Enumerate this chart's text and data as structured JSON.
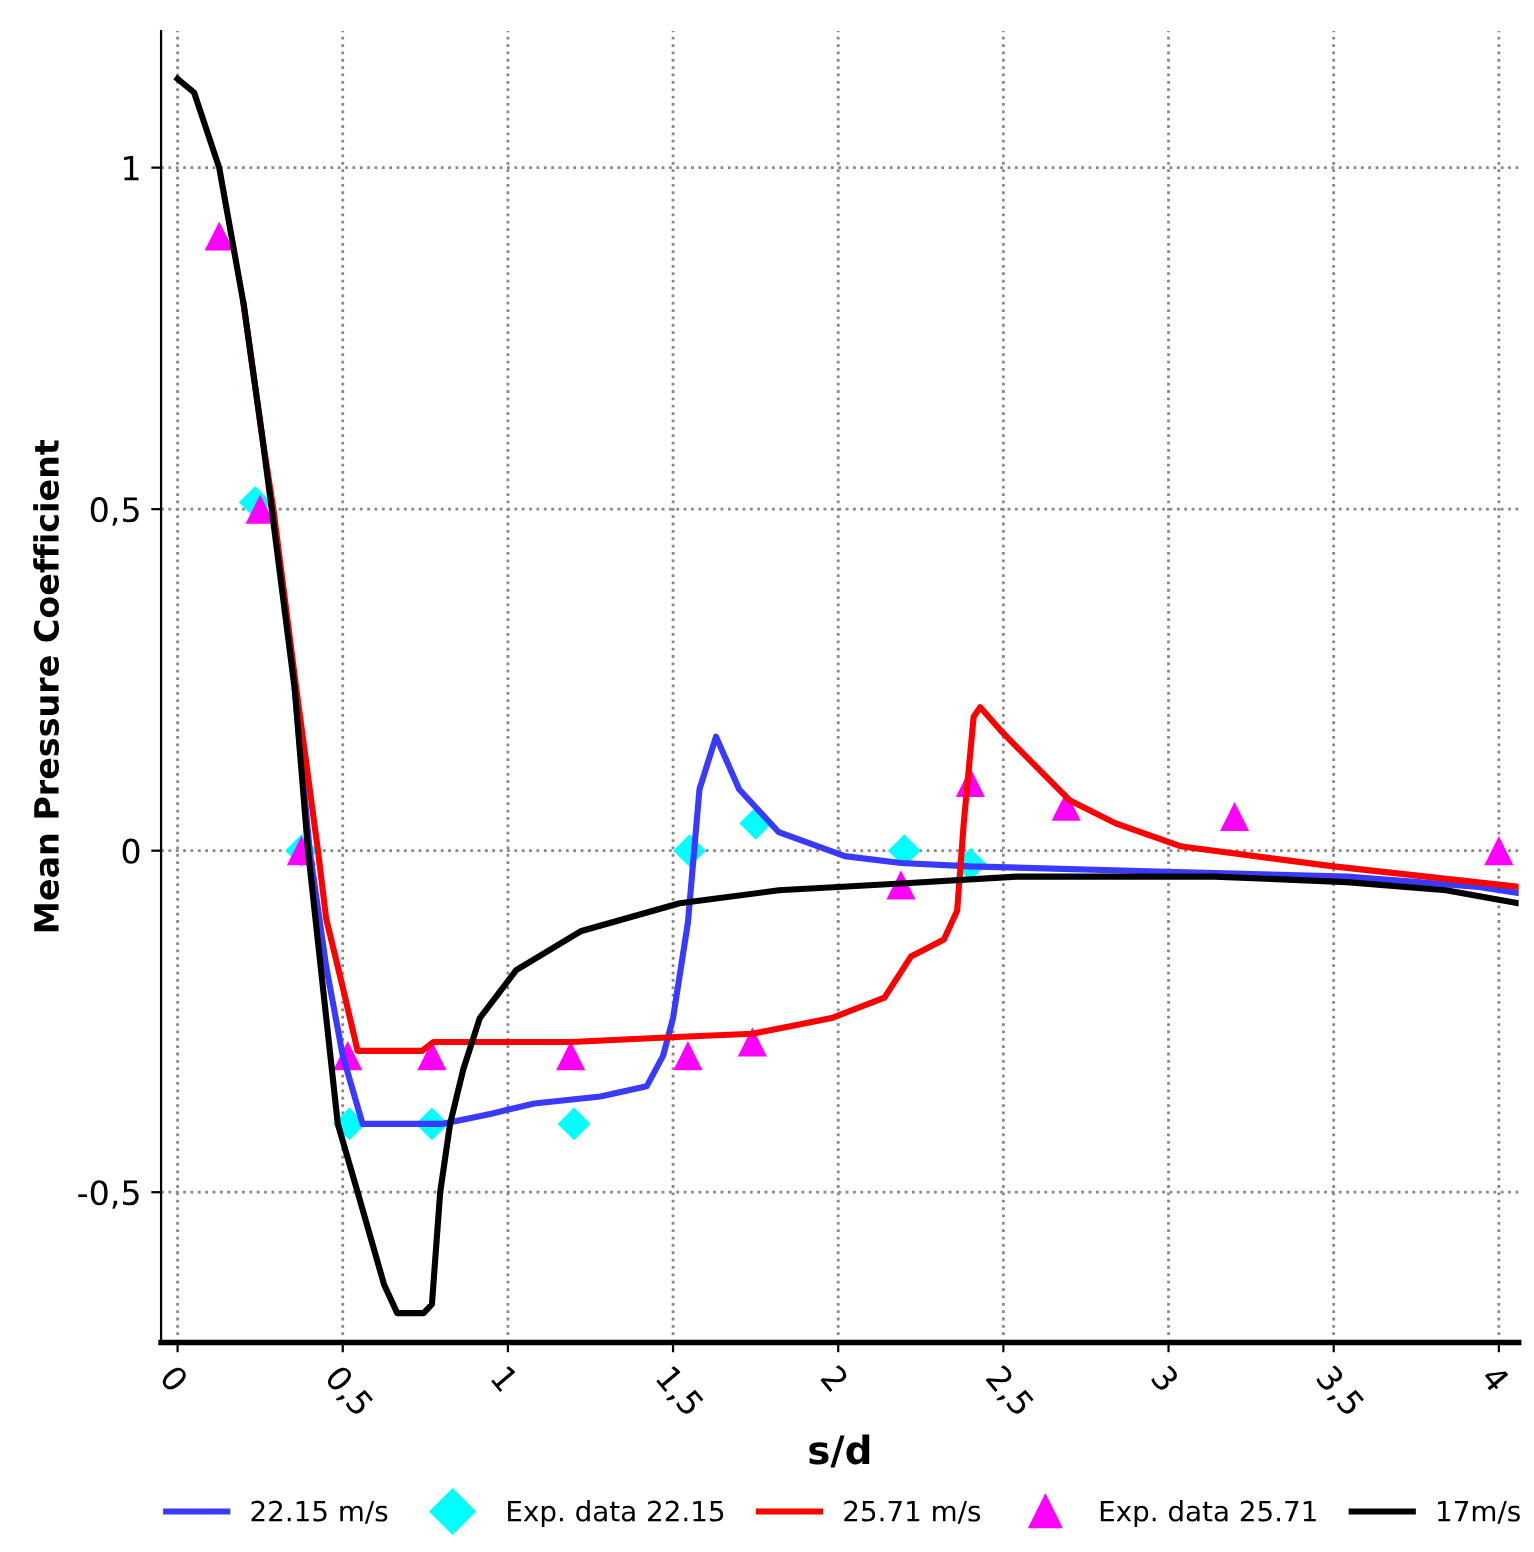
{
  "chart_data": {
    "type": "line",
    "xlabel": "s/d",
    "ylabel": "Mean Pressure Coefficient",
    "xlim": [
      -0.05,
      4.06
    ],
    "ylim": [
      -0.72,
      1.2
    ],
    "xticks": [
      0,
      {
        "value": 0.5,
        "label": "0,5"
      },
      1,
      {
        "value": 1.5,
        "label": "1,5"
      },
      2,
      {
        "value": 2.5,
        "label": "2,5"
      },
      3,
      {
        "value": 3.5,
        "label": "3,5"
      },
      4
    ],
    "yticks": [
      {
        "value": -0.5,
        "label": "-0,5"
      },
      0,
      {
        "value": 0.5,
        "label": "0,5"
      },
      1
    ],
    "grid": true,
    "legend": "bottom",
    "line_style": "solid",
    "series": [
      {
        "name": "22.15 m/s",
        "color": "#3a3aff",
        "marker": "none",
        "x": [
          0.355,
          0.4,
          0.45,
          0.5,
          0.56,
          0.8,
          0.95,
          1.08,
          1.28,
          1.42,
          1.47,
          1.5,
          1.545,
          1.58,
          1.63,
          1.7,
          1.82,
          2.02,
          2.19,
          2.4,
          2.94,
          3.54,
          3.94,
          4.06
        ],
        "values": [
          0.235,
          0.0,
          -0.17,
          -0.3,
          -0.4,
          -0.4,
          -0.385,
          -0.37,
          -0.36,
          -0.345,
          -0.3,
          -0.245,
          -0.105,
          0.09,
          0.167,
          0.09,
          0.027,
          -0.008,
          -0.018,
          -0.023,
          -0.03,
          -0.038,
          -0.053,
          -0.062
        ]
      },
      {
        "name": "Exp. data 22.15",
        "type": "scatter",
        "color": "#00ffff",
        "marker": "diamond",
        "x": [
          0.235,
          0.375,
          0.52,
          0.77,
          1.2,
          1.55,
          1.75,
          2.2,
          2.4
        ],
        "values": [
          0.51,
          0.0,
          -0.4,
          -0.4,
          -0.4,
          0.0,
          0.04,
          0.0,
          -0.02
        ]
      },
      {
        "name": "25.71 m/s",
        "color": "#ff0000",
        "marker": "none",
        "x": [
          0.2,
          0.256,
          0.29,
          0.36,
          0.425,
          0.45,
          0.5,
          0.545,
          0.74,
          0.775,
          1.19,
          1.545,
          1.74,
          1.98,
          2.14,
          2.22,
          2.26,
          2.32,
          2.36,
          2.38,
          2.41,
          2.43,
          2.49,
          2.54,
          2.7,
          2.84,
          3.04,
          3.5,
          4.06
        ],
        "values": [
          0.8,
          0.607,
          0.5,
          0.235,
          0.0,
          -0.1,
          -0.2,
          -0.293,
          -0.293,
          -0.28,
          -0.28,
          -0.272,
          -0.268,
          -0.245,
          -0.215,
          -0.155,
          -0.145,
          -0.13,
          -0.088,
          0.04,
          0.196,
          0.21,
          0.177,
          0.152,
          0.074,
          0.04,
          0.006,
          -0.023,
          -0.053
        ]
      },
      {
        "name": "Exp. data 25.71",
        "type": "scatter",
        "color": "#ff00ff",
        "marker": "triangle",
        "x": [
          0.126,
          0.25,
          0.375,
          0.515,
          0.77,
          1.19,
          1.545,
          1.74,
          2.19,
          2.4,
          2.69,
          3.2,
          4.0
        ],
        "values": [
          0.9,
          0.5,
          0.0,
          -0.3,
          -0.3,
          -0.3,
          -0.3,
          -0.28,
          -0.05,
          0.1,
          0.065,
          0.05,
          0.0
        ]
      },
      {
        "name": "17m/s",
        "color": "#000000",
        "marker": "none",
        "x": [
          0,
          0.05,
          0.126,
          0.2,
          0.256,
          0.285,
          0.355,
          0.395,
          0.485,
          0.545,
          0.625,
          0.665,
          0.745,
          0.77,
          0.795,
          0.825,
          0.865,
          0.915,
          1.025,
          1.22,
          1.52,
          1.82,
          2.19,
          2.54,
          3.14,
          3.54,
          3.84,
          4.06
        ],
        "values": [
          1.13,
          1.11,
          1.0,
          0.8,
          0.607,
          0.5,
          0.235,
          0.0,
          -0.4,
          -0.5,
          -0.635,
          -0.677,
          -0.677,
          -0.664,
          -0.5,
          -0.4,
          -0.32,
          -0.245,
          -0.175,
          -0.118,
          -0.077,
          -0.058,
          -0.048,
          -0.038,
          -0.038,
          -0.046,
          -0.058,
          -0.077
        ]
      }
    ]
  }
}
